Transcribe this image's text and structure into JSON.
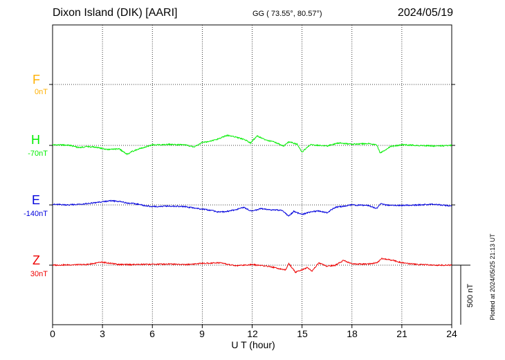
{
  "header": {
    "station": "Dixon Island (DIK)  [AARI]",
    "coords": "GG ( 73.55°,  80.57°)",
    "date": "2024/05/19"
  },
  "chart_data": {
    "type": "line",
    "title": "Dixon Island (DIK)  [AARI]",
    "xlabel": "U T (hour)",
    "xlim": [
      0,
      24
    ],
    "xticks": [
      "0",
      "3",
      "6",
      "9",
      "12",
      "15",
      "18",
      "21",
      "24"
    ],
    "grid": true,
    "scale_bar": "500 nT",
    "colors": {
      "F": "#ffb000",
      "H": "#00ee00",
      "E": "#0000dd",
      "Z": "#ee0000"
    },
    "series": [
      {
        "name": "F",
        "offset": "0nT",
        "points": []
      },
      {
        "name": "H",
        "offset": "-70nT",
        "points": [
          [
            0,
            5
          ],
          [
            1,
            2
          ],
          [
            1.6,
            -20
          ],
          [
            2,
            -10
          ],
          [
            2.6,
            -15
          ],
          [
            3.3,
            -35
          ],
          [
            4,
            -30
          ],
          [
            4.5,
            -75
          ],
          [
            4.8,
            -50
          ],
          [
            5.3,
            -25
          ],
          [
            6,
            5
          ],
          [
            7,
            8
          ],
          [
            8,
            5
          ],
          [
            8.5,
            -15
          ],
          [
            9,
            25
          ],
          [
            9.5,
            35
          ],
          [
            10,
            55
          ],
          [
            10.5,
            85
          ],
          [
            11,
            70
          ],
          [
            11.6,
            45
          ],
          [
            11.9,
            20
          ],
          [
            12.3,
            80
          ],
          [
            12.8,
            45
          ],
          [
            13.3,
            30
          ],
          [
            13.9,
            -5
          ],
          [
            14.2,
            30
          ],
          [
            14.7,
            10
          ],
          [
            15,
            -55
          ],
          [
            15.5,
            5
          ],
          [
            16.5,
            -5
          ],
          [
            17.2,
            20
          ],
          [
            18,
            10
          ],
          [
            19,
            15
          ],
          [
            19.5,
            5
          ],
          [
            19.7,
            -65
          ],
          [
            20,
            -40
          ],
          [
            20.3,
            -10
          ],
          [
            21,
            5
          ],
          [
            22,
            0
          ],
          [
            23,
            -5
          ],
          [
            24,
            0
          ]
        ]
      },
      {
        "name": "E",
        "offset": "-140nT",
        "points": [
          [
            0,
            5
          ],
          [
            1,
            0
          ],
          [
            2,
            10
          ],
          [
            3,
            25
          ],
          [
            3.5,
            35
          ],
          [
            4,
            30
          ],
          [
            4.5,
            15
          ],
          [
            5,
            10
          ],
          [
            5.5,
            -5
          ],
          [
            6,
            -15
          ],
          [
            7,
            -10
          ],
          [
            8,
            -15
          ],
          [
            9,
            -35
          ],
          [
            9.5,
            -45
          ],
          [
            10,
            -60
          ],
          [
            10.5,
            -55
          ],
          [
            11,
            -40
          ],
          [
            11.5,
            -20
          ],
          [
            12,
            -55
          ],
          [
            12.5,
            -30
          ],
          [
            13,
            -40
          ],
          [
            13.8,
            -45
          ],
          [
            14.2,
            -95
          ],
          [
            14.5,
            -55
          ],
          [
            15,
            -80
          ],
          [
            15.5,
            -60
          ],
          [
            16,
            -50
          ],
          [
            16.5,
            -65
          ],
          [
            17,
            -20
          ],
          [
            18,
            0
          ],
          [
            19,
            -5
          ],
          [
            19.5,
            -30
          ],
          [
            19.7,
            10
          ],
          [
            20,
            0
          ],
          [
            21,
            -5
          ],
          [
            22,
            0
          ],
          [
            23,
            5
          ],
          [
            24,
            -10
          ]
        ]
      },
      {
        "name": "Z",
        "offset": "30nT",
        "points": [
          [
            0,
            0
          ],
          [
            2,
            5
          ],
          [
            3,
            25
          ],
          [
            4,
            5
          ],
          [
            5,
            5
          ],
          [
            7,
            10
          ],
          [
            8,
            5
          ],
          [
            9,
            15
          ],
          [
            10,
            20
          ],
          [
            11,
            -5
          ],
          [
            12,
            5
          ],
          [
            13,
            -10
          ],
          [
            14,
            -40
          ],
          [
            14.2,
            15
          ],
          [
            14.6,
            -60
          ],
          [
            15,
            -40
          ],
          [
            15.3,
            -20
          ],
          [
            15.6,
            -50
          ],
          [
            16,
            20
          ],
          [
            16.5,
            -10
          ],
          [
            17,
            0
          ],
          [
            17.5,
            40
          ],
          [
            18,
            10
          ],
          [
            19,
            10
          ],
          [
            19.5,
            20
          ],
          [
            19.8,
            55
          ],
          [
            20.5,
            40
          ],
          [
            21,
            20
          ],
          [
            22,
            5
          ],
          [
            23,
            0
          ],
          [
            24,
            0
          ]
        ]
      }
    ],
    "plotted": "Plotted at 2024/05/25 21:13 UT"
  }
}
